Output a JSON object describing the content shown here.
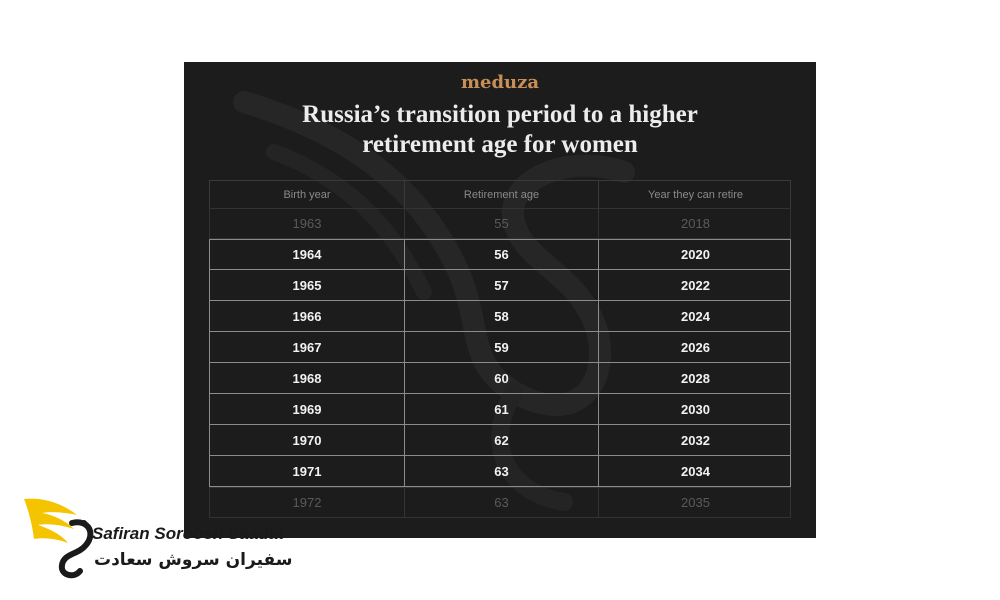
{
  "infographic": {
    "brand": "meduza",
    "title_line1": "Russia’s transition period to a higher",
    "title_line2": "retirement age for women",
    "columns": [
      "Birth year",
      "Retirement age",
      "Year they can retire"
    ],
    "rows": [
      {
        "birth_year": "1963",
        "retirement_age": "55",
        "retire_year": "2018",
        "highlighted": false
      },
      {
        "birth_year": "1964",
        "retirement_age": "56",
        "retire_year": "2020",
        "highlighted": true
      },
      {
        "birth_year": "1965",
        "retirement_age": "57",
        "retire_year": "2022",
        "highlighted": true
      },
      {
        "birth_year": "1966",
        "retirement_age": "58",
        "retire_year": "2024",
        "highlighted": true
      },
      {
        "birth_year": "1967",
        "retirement_age": "59",
        "retire_year": "2026",
        "highlighted": true
      },
      {
        "birth_year": "1968",
        "retirement_age": "60",
        "retire_year": "2028",
        "highlighted": true
      },
      {
        "birth_year": "1969",
        "retirement_age": "61",
        "retire_year": "2030",
        "highlighted": true
      },
      {
        "birth_year": "1970",
        "retirement_age": "62",
        "retire_year": "2032",
        "highlighted": true
      },
      {
        "birth_year": "1971",
        "retirement_age": "63",
        "retire_year": "2034",
        "highlighted": true
      },
      {
        "birth_year": "1972",
        "retirement_age": "63",
        "retire_year": "2035",
        "highlighted": false
      }
    ]
  },
  "watermark_logo": {
    "text_en": "Safiran Soroosh Saadat",
    "text_fa": "سفیران سروش سعادت",
    "colors": {
      "wing_yellow": "#f5c400",
      "dark": "#1a1a1a"
    }
  },
  "colors": {
    "panel_bg": "#1c1c1c",
    "brand": "#c88e55",
    "title": "#ececec"
  }
}
